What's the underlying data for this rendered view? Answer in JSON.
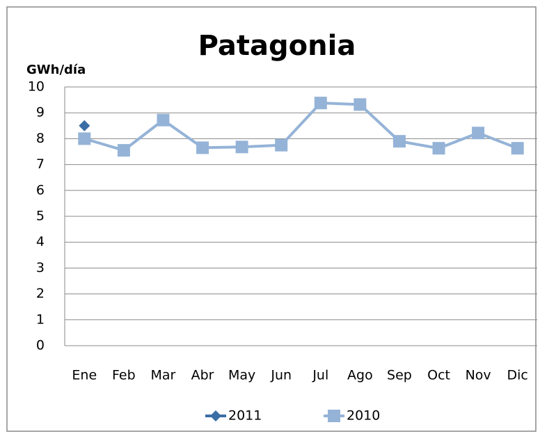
{
  "chart_data": {
    "type": "line",
    "title": "Patagonia",
    "y_label": "GWh/día",
    "categories": [
      "Ene",
      "Feb",
      "Mar",
      "Abr",
      "May",
      "Jun",
      "Jul",
      "Ago",
      "Sep",
      "Oct",
      "Nov",
      "Dic"
    ],
    "series": [
      {
        "name": "2011",
        "color": "#3a6ea5",
        "marker": "diamond",
        "values": [
          8.5,
          null,
          null,
          null,
          null,
          null,
          null,
          null,
          null,
          null,
          null,
          null
        ]
      },
      {
        "name": "2010",
        "color": "#95b3d7",
        "marker": "square",
        "values": [
          8.0,
          7.55,
          8.72,
          7.65,
          7.68,
          7.75,
          9.38,
          9.32,
          7.9,
          7.63,
          8.22,
          7.63
        ]
      }
    ],
    "ylim": [
      0,
      10
    ],
    "yticks": [
      0,
      1,
      2,
      3,
      4,
      5,
      6,
      7,
      8,
      9,
      10
    ],
    "grid": true,
    "legend": "bottom"
  }
}
